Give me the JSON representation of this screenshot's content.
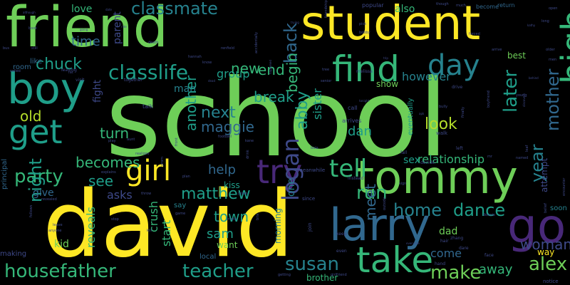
{
  "background_color": "#000000",
  "palette": {
    "yellow": "#fde725",
    "lime": "#b5de2b",
    "green": "#6ece58",
    "sea": "#35b779",
    "teal": "#1f9e89",
    "cyan": "#26828e",
    "blue": "#31688e",
    "indigo": "#3e4989",
    "purple": "#482878",
    "dark": "#440154"
  },
  "words": [
    {
      "text": "school",
      "color": "green",
      "weight": 1.0
    },
    {
      "text": "david",
      "color": "yellow",
      "weight": 0.9
    },
    {
      "text": "friend",
      "color": "green",
      "weight": 0.72
    },
    {
      "text": "student",
      "color": "yellow",
      "weight": 0.7
    },
    {
      "text": "tommy",
      "color": "green",
      "weight": 0.62
    },
    {
      "text": "larry",
      "color": "blue",
      "weight": 0.62
    },
    {
      "text": "go",
      "color": "purple",
      "weight": 0.6
    },
    {
      "text": "boy",
      "color": "teal",
      "weight": 0.58
    },
    {
      "text": "take",
      "color": "sea",
      "weight": 0.5
    },
    {
      "text": "find",
      "color": "sea",
      "weight": 0.5
    },
    {
      "text": "high",
      "color": "sea",
      "weight": 0.5
    },
    {
      "text": "get",
      "color": "teal",
      "weight": 0.48
    },
    {
      "text": "try",
      "color": "purple",
      "weight": 0.48
    },
    {
      "text": "day",
      "color": "cyan",
      "weight": 0.44
    },
    {
      "text": "girl",
      "color": "yellow",
      "weight": 0.4
    },
    {
      "text": "tell",
      "color": "sea",
      "weight": 0.38
    },
    {
      "text": "logan",
      "color": "indigo",
      "weight": 0.34
    },
    {
      "text": "classlife",
      "color": "teal",
      "weight": 0.3
    },
    {
      "text": "housefather",
      "color": "sea",
      "weight": 0.3
    },
    {
      "text": "teacher",
      "color": "teal",
      "weight": 0.3
    },
    {
      "text": "party",
      "color": "sea",
      "weight": 0.28
    },
    {
      "text": "later",
      "color": "teal",
      "weight": 0.28
    },
    {
      "text": "alex",
      "color": "green",
      "weight": 0.28
    },
    {
      "text": "run",
      "color": "sea",
      "weight": 0.28
    },
    {
      "text": "susan",
      "color": "cyan",
      "weight": 0.28
    },
    {
      "text": "make",
      "color": "green",
      "weight": 0.26
    },
    {
      "text": "home",
      "color": "cyan",
      "weight": 0.26
    },
    {
      "text": "classmate",
      "color": "cyan",
      "weight": 0.26
    },
    {
      "text": "mother",
      "color": "blue",
      "weight": 0.24
    },
    {
      "text": "back",
      "color": "blue",
      "weight": 0.24
    },
    {
      "text": "dance",
      "color": "teal",
      "weight": 0.24
    },
    {
      "text": "year",
      "color": "cyan",
      "weight": 0.24
    },
    {
      "text": "night",
      "color": "teal",
      "weight": 0.24
    },
    {
      "text": "look",
      "color": "lime",
      "weight": 0.22
    },
    {
      "text": "abby",
      "color": "teal",
      "weight": 0.22
    },
    {
      "text": "matthew",
      "color": "teal",
      "weight": 0.22
    },
    {
      "text": "next",
      "color": "cyan",
      "weight": 0.22
    },
    {
      "text": "chuck",
      "color": "teal",
      "weight": 0.22
    },
    {
      "text": "meet",
      "color": "blue",
      "weight": 0.22
    },
    {
      "text": "another",
      "color": "teal",
      "weight": 0.2
    },
    {
      "text": "begin",
      "color": "sea",
      "weight": 0.2
    },
    {
      "text": "see",
      "color": "teal",
      "weight": 0.2
    },
    {
      "text": "becomes",
      "color": "sea",
      "weight": 0.2
    },
    {
      "text": "break",
      "color": "teal",
      "weight": 0.2
    },
    {
      "text": "town",
      "color": "teal",
      "weight": 0.2
    },
    {
      "text": "maggie",
      "color": "blue",
      "weight": 0.2
    },
    {
      "text": "woman",
      "color": "indigo",
      "weight": 0.2
    },
    {
      "text": "turn",
      "color": "sea",
      "weight": 0.18
    },
    {
      "text": "old",
      "color": "lime",
      "weight": 0.18
    },
    {
      "text": "end",
      "color": "sea",
      "weight": 0.18
    },
    {
      "text": "new",
      "color": "sea",
      "weight": 0.18
    },
    {
      "text": "help",
      "color": "blue",
      "weight": 0.18
    },
    {
      "text": "dan",
      "color": "teal",
      "weight": 0.18
    },
    {
      "text": "away",
      "color": "sea",
      "weight": 0.18
    },
    {
      "text": "sam",
      "color": "teal",
      "weight": 0.18
    },
    {
      "text": "time",
      "color": "blue",
      "weight": 0.18
    },
    {
      "text": "however",
      "color": "cyan",
      "weight": 0.16
    },
    {
      "text": "reveals",
      "color": "sea",
      "weight": 0.16
    },
    {
      "text": "relationship",
      "color": "sea",
      "weight": 0.16
    },
    {
      "text": "crush",
      "color": "sea",
      "weight": 0.16
    },
    {
      "text": "start",
      "color": "sea",
      "weight": 0.16
    },
    {
      "text": "asks",
      "color": "indigo",
      "weight": 0.16
    },
    {
      "text": "group",
      "color": "teal",
      "weight": 0.16
    },
    {
      "text": "come",
      "color": "blue",
      "weight": 0.16
    },
    {
      "text": "sister",
      "color": "teal",
      "weight": 0.16
    },
    {
      "text": "love",
      "color": "sea",
      "weight": 0.14
    },
    {
      "text": "also",
      "color": "sea",
      "weight": 0.14
    },
    {
      "text": "dad",
      "color": "green",
      "weight": 0.14
    },
    {
      "text": "parent",
      "color": "indigo",
      "weight": 0.14
    },
    {
      "text": "give",
      "color": "blue",
      "weight": 0.14
    },
    {
      "text": "man",
      "color": "cyan",
      "weight": 0.14
    },
    {
      "text": "show",
      "color": "green",
      "weight": 0.12
    },
    {
      "text": "way",
      "color": "yellow",
      "weight": 0.12
    },
    {
      "text": "one",
      "color": "cyan",
      "weight": 0.14
    },
    {
      "text": "fight",
      "color": "indigo",
      "weight": 0.14
    },
    {
      "text": "sex",
      "color": "teal",
      "weight": 0.14
    },
    {
      "text": "kid",
      "color": "green",
      "weight": 0.14
    },
    {
      "text": "best",
      "color": "green",
      "weight": 0.12
    },
    {
      "text": "morning",
      "color": "cyan",
      "weight": 0.12
    },
    {
      "text": "brother",
      "color": "sea",
      "weight": 0.12
    },
    {
      "text": "kiss",
      "color": "teal",
      "weight": 0.12
    },
    {
      "text": "want",
      "color": "green",
      "weight": 0.12
    },
    {
      "text": "room",
      "color": "blue",
      "weight": 0.1
    },
    {
      "text": "like",
      "color": "blue",
      "weight": 0.1
    },
    {
      "text": "say",
      "color": "cyan",
      "weight": 0.1
    },
    {
      "text": "soon",
      "color": "cyan",
      "weight": 0.1
    },
    {
      "text": "principal",
      "color": "blue",
      "weight": 0.1
    },
    {
      "text": "making",
      "color": "indigo",
      "weight": 0.1
    },
    {
      "text": "local",
      "color": "blue",
      "weight": 0.1
    },
    {
      "text": "attempt",
      "color": "indigo",
      "weight": 0.12
    },
    {
      "text": "eventually",
      "color": "teal",
      "weight": 0.1
    },
    {
      "text": "return",
      "color": "blue",
      "weight": 0.08
    },
    {
      "text": "become",
      "color": "blue",
      "weight": 0.08
    },
    {
      "text": "popular",
      "color": "indigo",
      "weight": 0.08
    },
    {
      "text": "talk",
      "color": "indigo",
      "weight": 0.08
    },
    {
      "text": "call",
      "color": "indigo",
      "weight": 0.08
    },
    {
      "text": "arrives",
      "color": "indigo",
      "weight": 0.08
    },
    {
      "text": "meanwhile",
      "color": "indigo",
      "weight": 0.07
    },
    {
      "text": "walk",
      "color": "indigo",
      "weight": 0.07
    },
    {
      "text": "join",
      "color": "indigo",
      "weight": 0.07
    },
    {
      "text": "since",
      "color": "indigo",
      "weight": 0.07
    },
    {
      "text": "notice",
      "color": "indigo",
      "weight": 0.07
    },
    {
      "text": "drive",
      "color": "indigo",
      "weight": 0.06
    },
    {
      "text": "left",
      "color": "indigo",
      "weight": 0.06
    },
    {
      "text": "decide",
      "color": "indigo",
      "weight": 0.06
    },
    {
      "text": "instead",
      "color": "indigo",
      "weight": 0.06
    },
    {
      "text": "fall",
      "color": "indigo",
      "weight": 0.06
    },
    {
      "text": "keep",
      "color": "indigo",
      "weight": 0.06
    },
    {
      "text": "even",
      "color": "indigo",
      "weight": 0.06
    },
    {
      "text": "hand",
      "color": "indigo",
      "weight": 0.06
    },
    {
      "text": "face",
      "color": "indigo",
      "weight": 0.06
    },
    {
      "text": "hair",
      "color": "indigo",
      "weight": 0.06
    },
    {
      "text": "zhang",
      "color": "indigo",
      "weight": 0.06
    },
    {
      "text": "dare",
      "color": "indigo",
      "weight": 0.06
    },
    {
      "text": "melissa",
      "color": "indigo",
      "weight": 0.06
    },
    {
      "text": "leaving",
      "color": "indigo",
      "weight": 0.06
    },
    {
      "text": "visit",
      "color": "indigo",
      "weight": 0.06
    },
    {
      "text": "together",
      "color": "indigo",
      "weight": 0.06
    },
    {
      "text": "bus",
      "color": "indigo",
      "weight": 0.05
    },
    {
      "text": "still",
      "color": "indigo",
      "weight": 0.05
    },
    {
      "text": "book",
      "color": "indigo",
      "weight": 0.05
    },
    {
      "text": "called",
      "color": "indigo",
      "weight": 0.05
    },
    {
      "text": "fat",
      "color": "indigo",
      "weight": 0.05
    },
    {
      "text": "death",
      "color": "indigo",
      "weight": 0.05
    },
    {
      "text": "hannah",
      "color": "indigo",
      "weight": 0.05
    },
    {
      "text": "renfield",
      "color": "indigo",
      "weight": 0.05
    },
    {
      "text": "know",
      "color": "indigo",
      "weight": 0.05
    },
    {
      "text": "accidentally",
      "color": "indigo",
      "weight": 0.05
    },
    {
      "text": "friendship",
      "color": "indigo",
      "weight": 0.05
    },
    {
      "text": "pick",
      "color": "indigo",
      "weight": 0.05
    },
    {
      "text": "bobby",
      "color": "indigo",
      "weight": 0.05
    },
    {
      "text": "though",
      "color": "indigo",
      "weight": 0.05
    },
    {
      "text": "much",
      "color": "indigo",
      "weight": 0.05
    },
    {
      "text": "forced",
      "color": "indigo",
      "weight": 0.05
    },
    {
      "text": "arrive",
      "color": "indigo",
      "weight": 0.05
    },
    {
      "text": "long",
      "color": "indigo",
      "weight": 0.05
    },
    {
      "text": "open",
      "color": "indigo",
      "weight": 0.05
    },
    {
      "text": "older",
      "color": "indigo",
      "weight": 0.05
    },
    {
      "text": "men",
      "color": "indigo",
      "weight": 0.05
    },
    {
      "text": "young",
      "color": "indigo",
      "weight": 0.05
    },
    {
      "text": "senior",
      "color": "indigo",
      "weight": 0.05
    },
    {
      "text": "tree",
      "color": "indigo",
      "weight": 0.05
    },
    {
      "text": "bully",
      "color": "indigo",
      "weight": 0.05
    },
    {
      "text": "finally",
      "color": "indigo",
      "weight": 0.05
    },
    {
      "text": "boyfriend",
      "color": "indigo",
      "weight": 0.05
    },
    {
      "text": "leaf",
      "color": "indigo",
      "weight": 0.05
    },
    {
      "text": "mr",
      "color": "indigo",
      "weight": 0.05
    },
    {
      "text": "named",
      "color": "indigo",
      "weight": 0.05
    },
    {
      "text": "encounter",
      "color": "indigo",
      "weight": 0.05
    },
    {
      "text": "belief",
      "color": "indigo",
      "weight": 0.05
    },
    {
      "text": "donnie",
      "color": "indigo",
      "weight": 0.05
    },
    {
      "text": "sign",
      "color": "indigo",
      "weight": 0.05
    },
    {
      "text": "outside",
      "color": "indigo",
      "weight": 0.05
    },
    {
      "text": "bala",
      "color": "indigo",
      "weight": 0.05
    },
    {
      "text": "kane",
      "color": "indigo",
      "weight": 0.05
    },
    {
      "text": "football",
      "color": "indigo",
      "weight": 0.05
    },
    {
      "text": "drink",
      "color": "indigo",
      "weight": 0.05
    },
    {
      "text": "julien",
      "color": "indigo",
      "weight": 0.05
    },
    {
      "text": "invite",
      "color": "indigo",
      "weight": 0.05
    },
    {
      "text": "bite",
      "color": "indigo",
      "weight": 0.05
    },
    {
      "text": "game",
      "color": "indigo",
      "weight": 0.05
    },
    {
      "text": "kill",
      "color": "indigo",
      "weight": 0.05
    },
    {
      "text": "throw",
      "color": "indigo",
      "weight": 0.05
    },
    {
      "text": "prom",
      "color": "indigo",
      "weight": 0.05
    },
    {
      "text": "plan",
      "color": "indigo",
      "weight": 0.05
    },
    {
      "text": "realizes",
      "color": "indigo",
      "weight": 0.05
    },
    {
      "text": "front",
      "color": "indigo",
      "weight": 0.05
    },
    {
      "text": "aunt",
      "color": "indigo",
      "weight": 0.05
    },
    {
      "text": "play",
      "color": "indigo",
      "weight": 0.05
    },
    {
      "text": "revealed",
      "color": "indigo",
      "weight": 0.05
    },
    {
      "text": "leave",
      "color": "indigo",
      "weight": 0.05
    },
    {
      "text": "anyone",
      "color": "indigo",
      "weight": 0.05
    },
    {
      "text": "follows",
      "color": "indigo",
      "weight": 0.05
    },
    {
      "text": "explains",
      "color": "indigo",
      "weight": 0.05
    },
    {
      "text": "stop",
      "color": "indigo",
      "weight": 0.05
    },
    {
      "text": "girlfriend",
      "color": "indigo",
      "weight": 0.05
    },
    {
      "text": "getting",
      "color": "indigo",
      "weight": 0.05
    },
    {
      "text": "going",
      "color": "indigo",
      "weight": 0.04
    },
    {
      "text": "date",
      "color": "indigo",
      "weight": 0.04
    },
    {
      "text": "although",
      "color": "indigo",
      "weight": 0.04
    },
    {
      "text": "ride",
      "color": "indigo",
      "weight": 0.04
    },
    {
      "text": "trying",
      "color": "indigo",
      "weight": 0.04
    },
    {
      "text": "happened",
      "color": "indigo",
      "weight": 0.04
    },
    {
      "text": "kathy",
      "color": "indigo",
      "weight": 0.04
    },
    {
      "text": "dead",
      "color": "indigo",
      "weight": 0.04
    },
    {
      "text": "trip",
      "color": "indigo",
      "weight": 0.04
    },
    {
      "text": "apk",
      "color": "indigo",
      "weight": 0.04
    },
    {
      "text": "discovers",
      "color": "indigo",
      "weight": 0.04
    },
    {
      "text": "everyone",
      "color": "indigo",
      "weight": 0.04
    },
    {
      "text": "tonight",
      "color": "indigo",
      "weight": 0.04
    },
    {
      "text": "behind",
      "color": "indigo",
      "weight": 0.04
    }
  ]
}
